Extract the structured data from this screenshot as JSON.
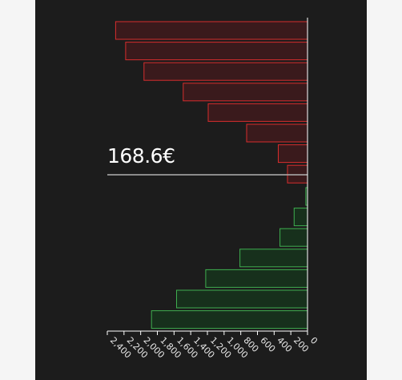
{
  "price_label": "168.6€",
  "colors": {
    "background": "#1c1c1c",
    "page": "#f5f5f5",
    "ask_stroke": "#d62d2d",
    "ask_fill": "#3a1a1c",
    "bid_stroke": "#3fae4f",
    "bid_fill": "#17301c",
    "price_line": "#b0b0b0",
    "axis": "#ffffff"
  },
  "chart_data": {
    "type": "bar",
    "orientation": "horizontal",
    "xlim": [
      0,
      2500
    ],
    "x_ticks": [
      "0",
      "200",
      "400",
      "600",
      "800",
      "1,000",
      "1,200",
      "1,400",
      "1,600",
      "1,800",
      "2,000",
      "2,200",
      "2,400"
    ],
    "x_tick_values": [
      0,
      200,
      400,
      600,
      800,
      1000,
      1200,
      1400,
      1600,
      1800,
      2000,
      2200,
      2400
    ],
    "x_axis_reversed": true,
    "series": [
      {
        "values": [
          2300,
          2180,
          1960,
          1490,
          1190,
          730,
          350,
          240
        ]
      },
      {
        "values": [
          20,
          160,
          330,
          810,
          1220,
          1570,
          1870
        ]
      }
    ],
    "price_level": "168.6€"
  }
}
